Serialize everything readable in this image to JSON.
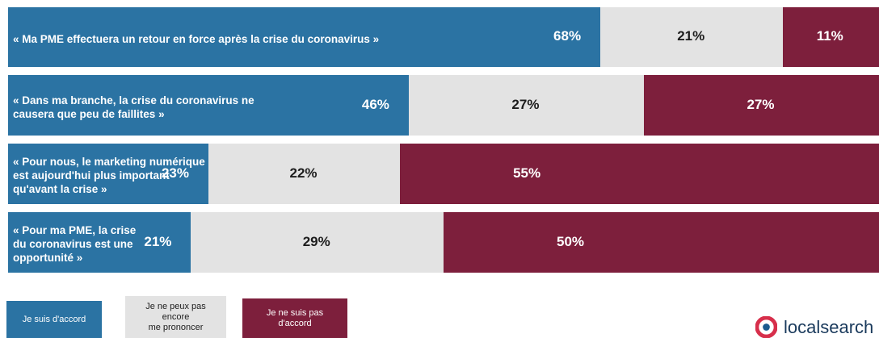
{
  "chart_data": {
    "type": "bar",
    "orientation": "horizontal",
    "stacked": true,
    "categories": [
      "« Ma PME effectuera un retour en force après la crise du coronavirus »",
      "« Dans ma branche, la crise du coronavirus ne\ncausera que peu de faillites »",
      "« Pour nous, le marketing numérique\nest aujourd'hui plus important\nqu'avant la crise »",
      "« Pour ma PME, la crise\ndu coronavirus est une\nopportunité »"
    ],
    "series": [
      {
        "name": "Je suis d'accord",
        "values": [
          68,
          46,
          23,
          21
        ]
      },
      {
        "name": "Je ne peux pas\nencore\nme prononcer",
        "values": [
          21,
          27,
          22,
          29
        ]
      },
      {
        "name": "Je ne suis pas\nd'accord",
        "values": [
          11,
          27,
          55,
          50
        ]
      }
    ],
    "value_labels": [
      [
        "68%",
        "21%",
        "11%"
      ],
      [
        "46%",
        "27%",
        "27%"
      ],
      [
        "23%",
        "22%",
        "55%"
      ],
      [
        "21%",
        "29%",
        "50%"
      ]
    ],
    "xlim": [
      0,
      100
    ],
    "colors": [
      "#2b73a3",
      "#e3e3e3",
      "#7d1f3c"
    ],
    "legend_position": "bottom-left",
    "grid": false
  },
  "logo": {
    "text": "localsearch",
    "icon": "localsearch-logo-icon"
  }
}
